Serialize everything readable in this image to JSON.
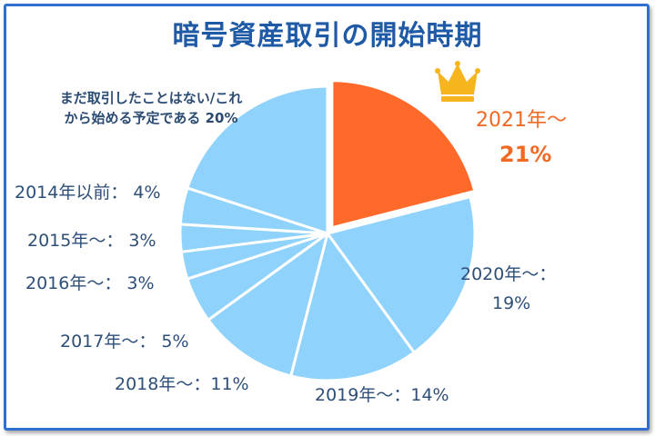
{
  "chart_data": {
    "type": "pie",
    "title": "暗号資産取引の開始時期",
    "slices": [
      {
        "label": "2021年〜",
        "value": 21,
        "value_text": "21%",
        "highlight": true,
        "color": "#ff6a2b"
      },
      {
        "label": "2020年〜：",
        "value": 19,
        "value_text": "19%",
        "color": "#8fd2fb"
      },
      {
        "label": "2019年〜：14%",
        "value": 14,
        "color": "#8fd2fb"
      },
      {
        "label": "2018年〜：11%",
        "value": 11,
        "color": "#8fd2fb"
      },
      {
        "label": "2017年〜： 5%",
        "value": 5,
        "color": "#8fd2fb"
      },
      {
        "label": "2016年〜： 3%",
        "value": 3,
        "color": "#8fd2fb"
      },
      {
        "label": "2015年〜： 3%",
        "value": 3,
        "color": "#8fd2fb"
      },
      {
        "label": "2014年以前： 4%",
        "value": 4,
        "color": "#8fd2fb"
      },
      {
        "label_lines": [
          "まだ取引したことはない/これ",
          "から始める予定である 20%"
        ],
        "value": 20,
        "color": "#8fd2fb"
      }
    ],
    "start_angle_deg": 0,
    "direction": "clockwise",
    "highlight_icon": "crown-icon"
  },
  "colors": {
    "title": "#1f5aa6",
    "border": "#2f6fd0",
    "label": "#2d4f78",
    "highlight": "#ef6a25",
    "crown": "#f6b51c",
    "slice_stroke": "#ffffff"
  }
}
